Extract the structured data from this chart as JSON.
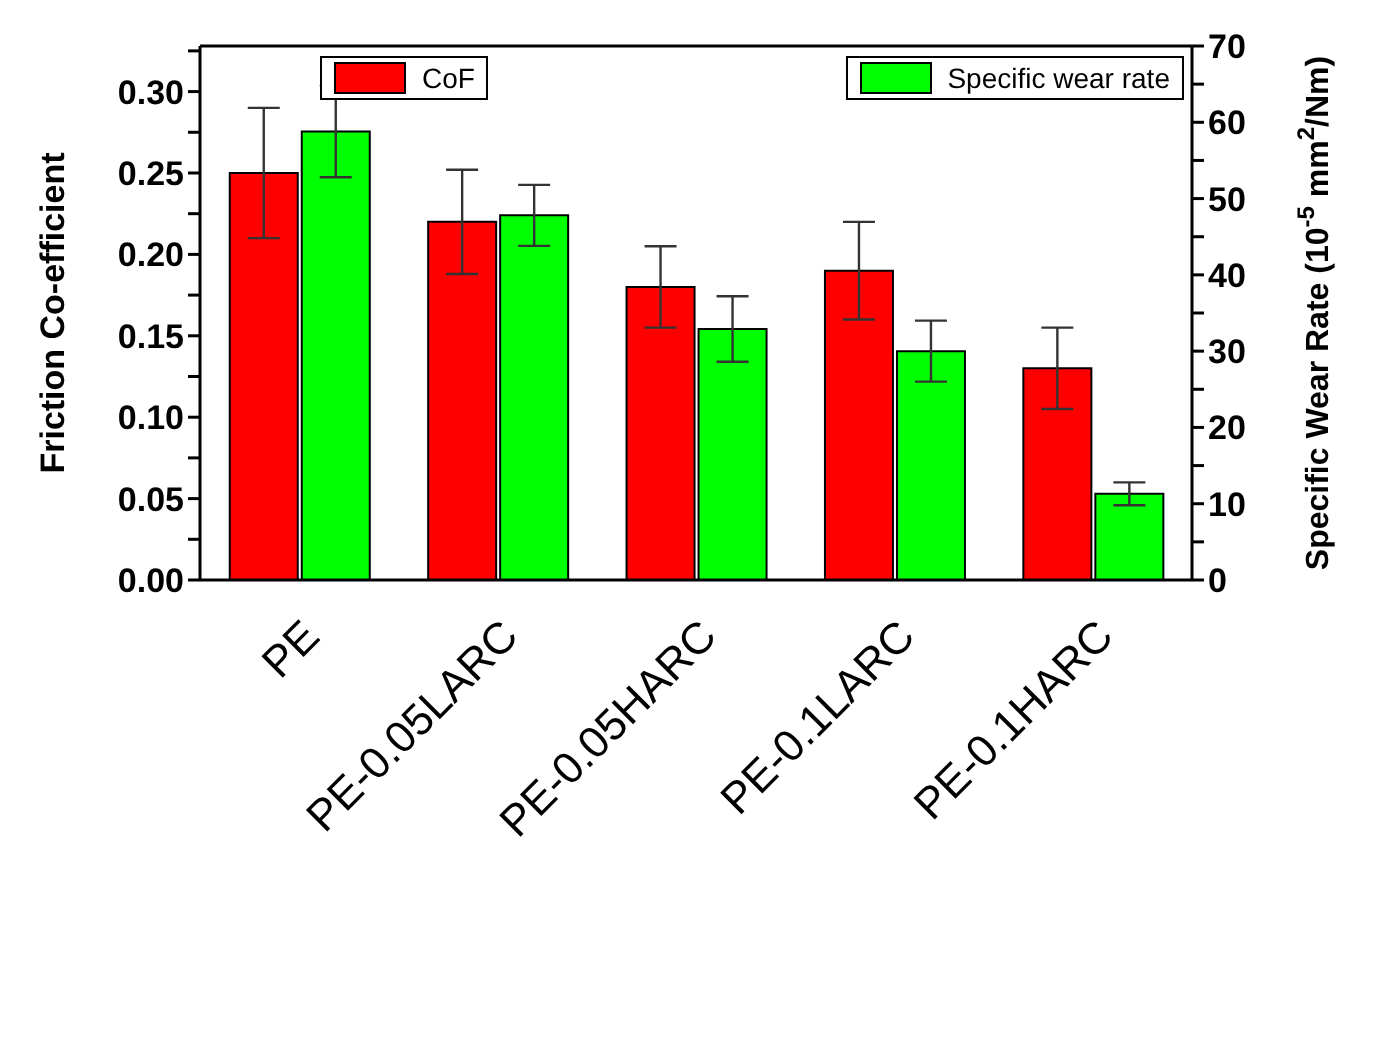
{
  "chart_data": {
    "type": "bar",
    "categories": [
      "PE",
      "PE-0.05LARC",
      "PE-0.05HARC",
      "PE-0.1LARC",
      "PE-0.1HARC"
    ],
    "ylabel": "Friction Co-efficient",
    "y2label": "Specific Wear Rate (10$^{-5}$ mm$^{2}$/Nm)",
    "series": [
      {
        "name": "CoF",
        "color": "#ff0000",
        "values": [
          0.25,
          0.22,
          0.18,
          0.19,
          0.13
        ],
        "errors": [
          0.04,
          0.032,
          0.025,
          0.03,
          0.025
        ]
      },
      {
        "name": "Specific wear rate",
        "color": "#00ff00",
        "axis": "y2",
        "values": [
          58.8,
          47.8,
          32.9,
          30.0,
          11.3
        ],
        "errors": [
          6,
          4,
          4.3,
          4,
          1.5
        ]
      }
    ],
    "ylim": [
      0,
      0.328
    ],
    "yticks": [
      {
        "value": 0,
        "label": "0.00"
      },
      {
        "value": 0.025,
        "label": null
      },
      0.05,
      {
        "value": 0.075,
        "label": null
      },
      {
        "value": 0.1,
        "label": "0.10"
      },
      {
        "value": 0.125,
        "label": null
      },
      0.15,
      {
        "value": 0.175,
        "label": null
      },
      {
        "value": 0.2,
        "label": "0.20"
      },
      {
        "value": 0.225,
        "label": null
      },
      0.25,
      {
        "value": 0.275,
        "label": null
      },
      {
        "value": 0.3,
        "label": "0.30"
      },
      {
        "value": 0.325,
        "label": null
      }
    ],
    "y2lim": [
      0,
      70
    ],
    "y2ticks": [
      0,
      {
        "value": 5,
        "label": null
      },
      10,
      {
        "value": 15,
        "label": null
      },
      20,
      {
        "value": 25,
        "label": null
      },
      30,
      {
        "value": 35,
        "label": null
      },
      40,
      {
        "value": 45,
        "label": null
      },
      50,
      {
        "value": 55,
        "label": null
      },
      60,
      {
        "value": 65,
        "label": null
      },
      70
    ],
    "legend": "top",
    "grid": false
  }
}
